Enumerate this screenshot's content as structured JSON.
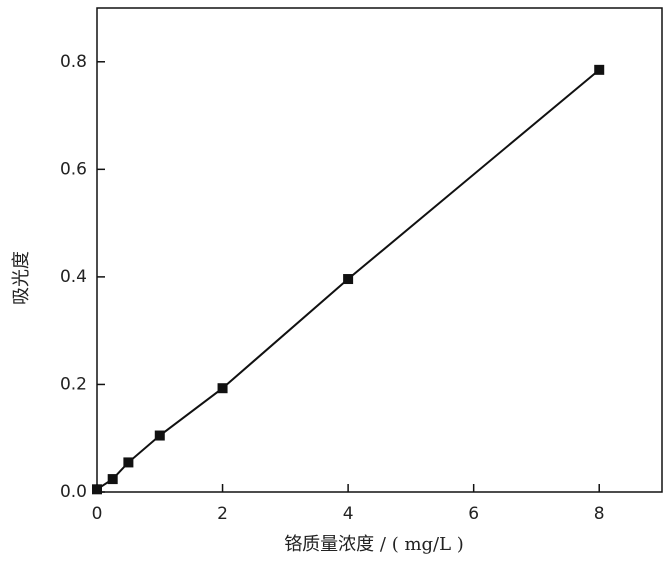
{
  "chart_data": {
    "type": "scatter",
    "x_label": "铬质量浓度 / ( mg/L )",
    "y_label": "吸光度",
    "x": [
      0,
      0.25,
      0.5,
      1,
      2,
      4,
      8
    ],
    "series": [
      {
        "color": "#111111",
        "values": [
          0.005,
          0.024,
          0.055,
          0.105,
          0.193,
          0.396,
          0.785
        ]
      }
    ],
    "xlim": [
      0,
      9
    ],
    "ylim": [
      0,
      0.9
    ],
    "xticks": [
      0,
      2,
      4,
      6,
      8
    ],
    "yticks": [
      {
        "value": 0,
        "label": "0.0"
      },
      {
        "value": 0.2,
        "label": "0.2"
      },
      {
        "value": 0.4,
        "label": "0.4"
      },
      {
        "value": 0.6,
        "label": "0.6"
      },
      {
        "value": 0.8,
        "label": "0.8"
      }
    ],
    "connect": true,
    "marker": "square"
  }
}
